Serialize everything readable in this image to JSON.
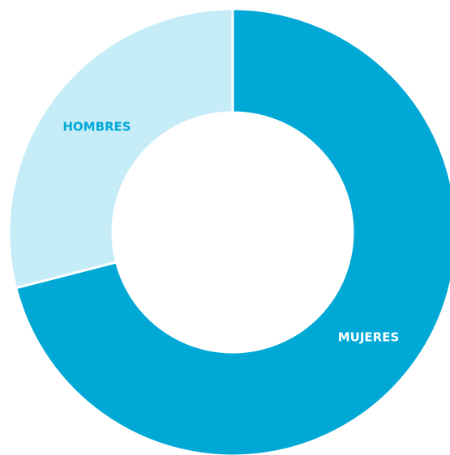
{
  "chart_data": {
    "type": "donut",
    "categories": [
      "MUJERES",
      "HOMBRES"
    ],
    "values": [
      71,
      29
    ],
    "colors": [
      "#00a8d6",
      "#c6ecf8"
    ]
  }
}
